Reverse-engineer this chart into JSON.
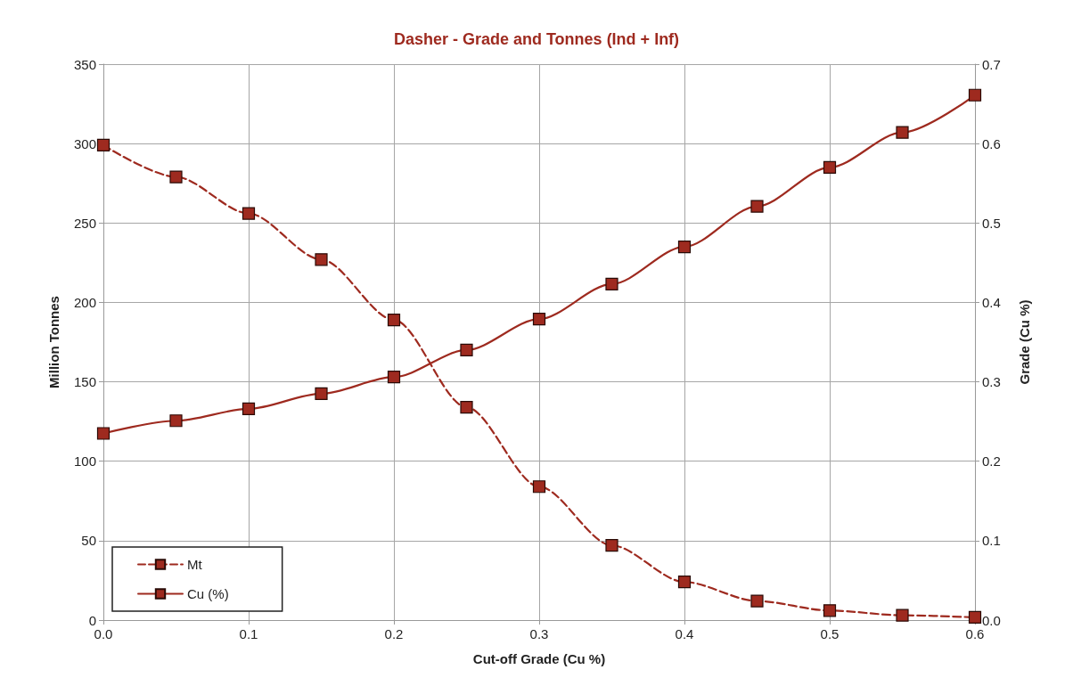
{
  "chart_data": {
    "type": "line",
    "title": "Dasher - Grade and Tonnes (Ind + Inf)",
    "xlabel": "Cut-off Grade (Cu %)",
    "ylabel": "Million Tonnes",
    "y2label": "Grade (Cu %)",
    "x": [
      0,
      0.05,
      0.1,
      0.15,
      0.2,
      0.25,
      0.3,
      0.35,
      0.4,
      0.45,
      0.5,
      0.55,
      0.6
    ],
    "series": [
      {
        "name": "Mt",
        "color": "#9e2a1f",
        "line_style": "dashed",
        "values": [
          299,
          279,
          256,
          227,
          189,
          134,
          84,
          47,
          24,
          12,
          6,
          3,
          1.7
        ]
      },
      {
        "name": "Cu (%)",
        "color": "#9e2a1f",
        "line_style": "solid",
        "axis": "y2",
        "values": [
          0.235,
          0.251,
          0.266,
          0.285,
          0.306,
          0.34,
          0.379,
          0.423,
          0.47,
          0.521,
          0.57,
          0.614,
          0.661
        ]
      }
    ],
    "xlim": [
      0,
      0.6
    ],
    "xticks": [
      {
        "value": 0,
        "label": "0.0"
      },
      0.1,
      0.2,
      0.3,
      0.4,
      0.5,
      0.6
    ],
    "ylim": [
      0,
      350
    ],
    "yticks": [
      0,
      50,
      100,
      150,
      200,
      250,
      300,
      350
    ],
    "y2lim": [
      0,
      0.7
    ],
    "y2ticks": [
      {
        "value": 0,
        "label": "0.0"
      },
      0.1,
      0.2,
      0.3,
      0.4,
      0.5,
      0.6,
      0.7
    ],
    "grid": true,
    "legend": "bottom left",
    "marker": "square"
  }
}
